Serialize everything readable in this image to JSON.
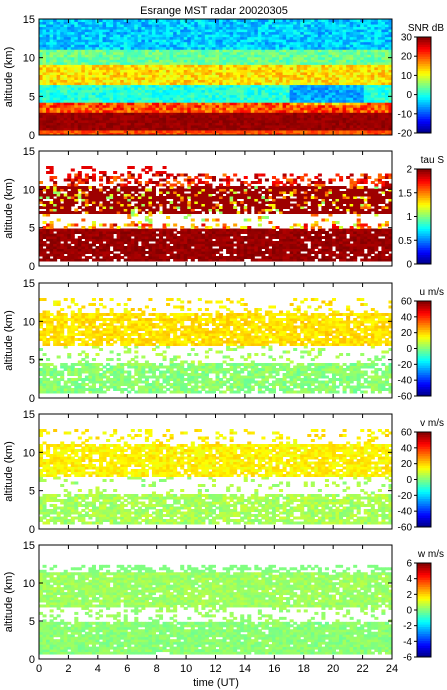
{
  "chart_data": {
    "type": "heatmap",
    "title": "Esrange MST radar 20020305",
    "xlabel": "time (UT)",
    "x_range": [
      0,
      24
    ],
    "x_ticks": [
      "0",
      "2",
      "4",
      "6",
      "8",
      "10",
      "12",
      "14",
      "16",
      "18",
      "20",
      "22",
      "24"
    ],
    "colormap": "jet",
    "panels": [
      {
        "ylabel": "altitude (km)",
        "y_range": [
          0,
          15
        ],
        "y_ticks": [
          "0",
          "5",
          "10",
          "15"
        ],
        "quantity": "SNR",
        "unit": "dB",
        "cbar_label": "SNR dB",
        "cbar_range": [
          -20,
          30
        ],
        "cbar_ticks": [
          "30",
          "20",
          "10",
          "0",
          "-10",
          "-20"
        ]
      },
      {
        "ylabel": "altitude (km)",
        "y_range": [
          0,
          15
        ],
        "y_ticks": [
          "0",
          "5",
          "10",
          "15"
        ],
        "quantity": "tau",
        "unit": "S",
        "cbar_label": "tau S",
        "cbar_range": [
          0,
          2
        ],
        "cbar_ticks": [
          "2",
          "1.5",
          "1",
          "0.5",
          "0"
        ]
      },
      {
        "ylabel": "altitude (km)",
        "y_range": [
          0,
          15
        ],
        "y_ticks": [
          "0",
          "5",
          "10",
          "15"
        ],
        "quantity": "u",
        "unit": "m/s",
        "cbar_label": "u m/s",
        "cbar_range": [
          -60,
          60
        ],
        "cbar_ticks": [
          "60",
          "40",
          "20",
          "0",
          "-20",
          "-40",
          "-60"
        ]
      },
      {
        "ylabel": "altitude (km)",
        "y_range": [
          0,
          15
        ],
        "y_ticks": [
          "0",
          "5",
          "10",
          "15"
        ],
        "quantity": "v",
        "unit": "m/s",
        "cbar_label": "v m/s",
        "cbar_range": [
          -60,
          60
        ],
        "cbar_ticks": [
          "60",
          "40",
          "20",
          "0",
          "-20",
          "-40",
          "-60"
        ]
      },
      {
        "ylabel": "altitude (km)",
        "y_range": [
          0,
          15
        ],
        "y_ticks": [
          "0",
          "5",
          "10",
          "15"
        ],
        "quantity": "w",
        "unit": "m/s",
        "cbar_label": "w m/s",
        "cbar_range": [
          -6,
          6
        ],
        "cbar_ticks": [
          "6",
          "4",
          "2",
          "0",
          "-2",
          "-4",
          "-6"
        ]
      }
    ]
  }
}
